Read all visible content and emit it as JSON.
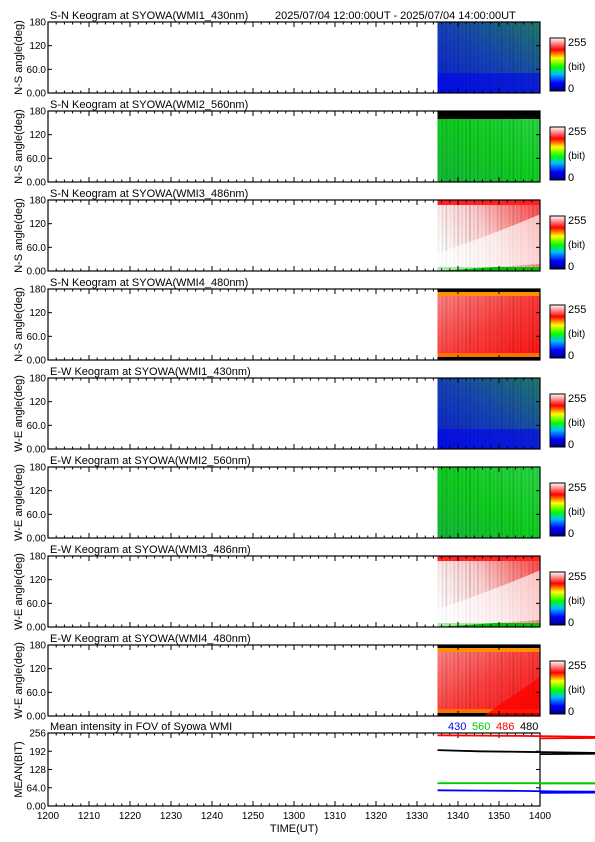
{
  "figure": {
    "time_range": "2025/07/04 12:00:00UT - 2025/07/04 14:00:00UT",
    "xlabel": "TIME(UT)",
    "x_ticks": [
      "1200",
      "1210",
      "1220",
      "1230",
      "1240",
      "1250",
      "1300",
      "1310",
      "1320",
      "1330",
      "1340",
      "1350",
      "1400"
    ],
    "data_start_label": "1335",
    "colorbar": {
      "max_label": "255",
      "min_label": "0",
      "unit_label": "(bit)"
    }
  },
  "chart_data": [
    {
      "type": "heatmap",
      "title": "S-N Keogram at SYOWA(WMI1_430nm)",
      "ylabel": "N-S angle(deg)",
      "y_ticks": [
        "0.00",
        "60.0",
        "120",
        "180"
      ],
      "ylim": [
        0,
        180
      ],
      "x_range": [
        "1200",
        "1400"
      ],
      "data_x_range": [
        "1335",
        "1400"
      ],
      "colormap": "rainbow",
      "clim": [
        0,
        255
      ],
      "scheme": "blue"
    },
    {
      "type": "heatmap",
      "title": "S-N Keogram at SYOWA(WMI2_560nm)",
      "ylabel": "N-S angle(deg)",
      "y_ticks": [
        "0.00",
        "60.0",
        "120",
        "180"
      ],
      "ylim": [
        0,
        180
      ],
      "x_range": [
        "1200",
        "1400"
      ],
      "data_x_range": [
        "1335",
        "1400"
      ],
      "colormap": "rainbow",
      "clim": [
        0,
        255
      ],
      "scheme": "green"
    },
    {
      "type": "heatmap",
      "title": "S-N Keogram at SYOWA(WMI3_486nm)",
      "ylabel": "N-S angle(deg)",
      "y_ticks": [
        "0.00",
        "60.0",
        "120",
        "180"
      ],
      "ylim": [
        0,
        180
      ],
      "x_range": [
        "1200",
        "1400"
      ],
      "data_x_range": [
        "1335",
        "1400"
      ],
      "colormap": "rainbow",
      "clim": [
        0,
        255
      ],
      "scheme": "white"
    },
    {
      "type": "heatmap",
      "title": "S-N Keogram at SYOWA(WMI4_480nm)",
      "ylabel": "N-S angle(deg)",
      "y_ticks": [
        "0.00",
        "60.0",
        "120",
        "180"
      ],
      "ylim": [
        0,
        180
      ],
      "x_range": [
        "1200",
        "1400"
      ],
      "data_x_range": [
        "1335",
        "1400"
      ],
      "colormap": "rainbow",
      "clim": [
        0,
        255
      ],
      "scheme": "red"
    },
    {
      "type": "heatmap",
      "title": "E-W Keogram at SYOWA(WMI1_430nm)",
      "ylabel": "W-E angle(deg)",
      "y_ticks": [
        "0.00",
        "60.0",
        "120",
        "180"
      ],
      "ylim": [
        0,
        180
      ],
      "x_range": [
        "1200",
        "1400"
      ],
      "data_x_range": [
        "1335",
        "1400"
      ],
      "colormap": "rainbow",
      "clim": [
        0,
        255
      ],
      "scheme": "blue"
    },
    {
      "type": "heatmap",
      "title": "E-W Keogram at SYOWA(WMI2_560nm)",
      "ylabel": "W-E angle(deg)",
      "y_ticks": [
        "0.00",
        "60.0",
        "120",
        "180"
      ],
      "ylim": [
        0,
        180
      ],
      "x_range": [
        "1200",
        "1400"
      ],
      "data_x_range": [
        "1335",
        "1400"
      ],
      "colormap": "rainbow",
      "clim": [
        0,
        255
      ],
      "scheme": "green"
    },
    {
      "type": "heatmap",
      "title": "E-W Keogram at SYOWA(WMI3_486nm)",
      "ylabel": "W-E angle(deg)",
      "y_ticks": [
        "0.00",
        "60.0",
        "120",
        "180"
      ],
      "ylim": [
        0,
        180
      ],
      "x_range": [
        "1200",
        "1400"
      ],
      "data_x_range": [
        "1335",
        "1400"
      ],
      "colormap": "rainbow",
      "clim": [
        0,
        255
      ],
      "scheme": "white"
    },
    {
      "type": "heatmap",
      "title": "E-W Keogram at SYOWA(WMI4_480nm)",
      "ylabel": "W-E angle(deg)",
      "y_ticks": [
        "0.00",
        "60.0",
        "120",
        "180"
      ],
      "ylim": [
        0,
        180
      ],
      "x_range": [
        "1200",
        "1400"
      ],
      "data_x_range": [
        "1335",
        "1400"
      ],
      "colormap": "rainbow",
      "clim": [
        0,
        255
      ],
      "scheme": "red"
    },
    {
      "type": "line",
      "title": "Mean intensity in FOV of Syowa WMI",
      "ylabel": "MEAN(BIT)",
      "y_ticks": [
        "0.00",
        "64.0",
        "128",
        "192",
        "256"
      ],
      "ylim": [
        0,
        256
      ],
      "x_range": [
        "1200",
        "1400"
      ],
      "x": [
        "1335",
        "1345",
        "1355",
        "1365",
        "1375",
        "1385",
        "1400"
      ],
      "series": [
        {
          "name": "430",
          "color": "#0000ff",
          "values": [
            55,
            54,
            53,
            51,
            50,
            48,
            46
          ]
        },
        {
          "name": "560",
          "color": "#00cc00",
          "values": [
            80,
            80,
            80,
            80,
            80,
            79,
            79
          ]
        },
        {
          "name": "486",
          "color": "#ff0000",
          "values": [
            248,
            247,
            246,
            244,
            242,
            240,
            237
          ]
        },
        {
          "name": "480",
          "color": "#000000",
          "values": [
            196,
            192,
            190,
            188,
            186,
            184,
            182
          ]
        }
      ]
    }
  ]
}
